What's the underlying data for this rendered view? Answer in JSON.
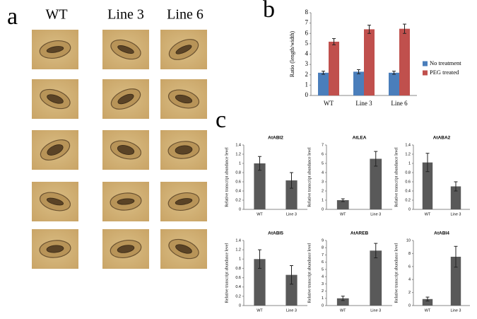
{
  "figure": {
    "panel_labels": [
      "a",
      "b",
      "c"
    ],
    "column_headers": [
      "WT",
      "Line 3",
      "Line 6"
    ]
  },
  "chart_data": [
    {
      "type": "bar",
      "y_label": "Ratio (length/width)",
      "categories": [
        "WT",
        "Line 3",
        "Line 6"
      ],
      "series": [
        {
          "name": "No treatment",
          "color": "#4a7ebb",
          "values": [
            2.2,
            2.3,
            2.2
          ],
          "errors": [
            0.15,
            0.2,
            0.15
          ]
        },
        {
          "name": "PEG treated",
          "color": "#c0504d",
          "values": [
            5.2,
            6.4,
            6.45
          ],
          "errors": [
            0.3,
            0.4,
            0.45
          ]
        }
      ],
      "ylim": [
        0,
        8
      ],
      "yticks": [
        0,
        1,
        2,
        3,
        4,
        5,
        6,
        7,
        8
      ],
      "legend": "right"
    },
    {
      "type": "bar",
      "title": "AtABI2",
      "y_label": "Relative transcript abundance level",
      "categories": [
        "WT",
        "Line 3"
      ],
      "color": "#595959",
      "values": [
        1,
        0.63
      ],
      "errors": [
        0.15,
        0.17
      ],
      "ylim": [
        0,
        1.4
      ],
      "yticks": [
        0,
        0.2,
        0.4,
        0.6,
        0.8,
        1,
        1.2,
        1.4
      ]
    },
    {
      "type": "bar",
      "title": "AtLEA",
      "y_label": "Relative transcript abundance level",
      "categories": [
        "WT",
        "Line 3"
      ],
      "color": "#595959",
      "values": [
        1,
        5.5
      ],
      "errors": [
        0.15,
        0.8
      ],
      "ylim": [
        0,
        7
      ],
      "yticks": [
        0,
        1,
        2,
        3,
        4,
        5,
        6,
        7
      ]
    },
    {
      "type": "bar",
      "title": "AtABA2",
      "y_label": "Relative transcript abundance level",
      "categories": [
        "WT",
        "Line 3"
      ],
      "color": "#595959",
      "values": [
        1.02,
        0.5
      ],
      "errors": [
        0.2,
        0.1
      ],
      "ylim": [
        0,
        1.4
      ],
      "yticks": [
        0,
        0.2,
        0.4,
        0.6,
        0.8,
        1,
        1.2,
        1.4
      ]
    },
    {
      "type": "bar",
      "title": "AtABI5",
      "y_label": "Relative transcript abundance level",
      "categories": [
        "WT",
        "Line 3"
      ],
      "color": "#595959",
      "values": [
        1,
        0.66
      ],
      "errors": [
        0.2,
        0.2
      ],
      "ylim": [
        0,
        1.4
      ],
      "yticks": [
        0,
        0.2,
        0.4,
        0.6,
        0.8,
        1,
        1.2,
        1.4
      ]
    },
    {
      "type": "bar",
      "title": "AtAREB",
      "y_label": "Relative transcript abundance level",
      "categories": [
        "WT",
        "Line 3"
      ],
      "color": "#595959",
      "values": [
        1,
        7.6
      ],
      "errors": [
        0.3,
        1
      ],
      "ylim": [
        0,
        9
      ],
      "yticks": [
        0,
        1,
        2,
        3,
        4,
        5,
        6,
        7,
        8,
        9
      ]
    },
    {
      "type": "bar",
      "title": "AtABI4",
      "y_label": "Relative transcript abundance level",
      "categories": [
        "WT",
        "Line 3"
      ],
      "color": "#595959",
      "values": [
        1,
        7.5
      ],
      "errors": [
        0.3,
        1.6
      ],
      "ylim": [
        0,
        10
      ],
      "yticks": [
        0,
        2,
        4,
        6,
        8,
        10
      ]
    }
  ]
}
